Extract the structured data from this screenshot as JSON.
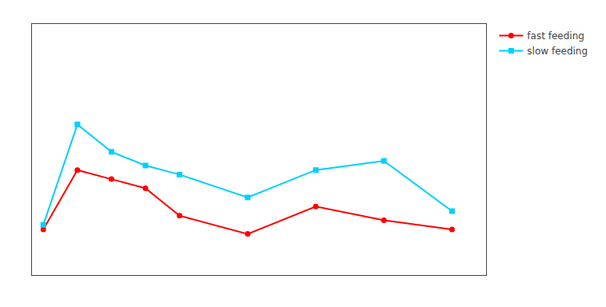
{
  "chart_data": {
    "type": "line",
    "x": [
      0,
      15,
      30,
      45,
      60,
      90,
      120,
      150,
      180
    ],
    "series": [
      {
        "name": "fast feeding",
        "color": "#ff0000",
        "marker": "circle",
        "values": [
          5.5,
          6.8,
          6.6,
          6.4,
          5.8,
          5.4,
          6.0,
          5.7,
          5.5
        ]
      },
      {
        "name": "slow feeding",
        "color": "#00cfff",
        "marker": "square",
        "values": [
          5.6,
          7.8,
          7.2,
          6.9,
          6.7,
          6.2,
          6.8,
          7.0,
          5.9
        ]
      }
    ],
    "xlim": [
      -5,
      195
    ],
    "ylim": [
      4.5,
      10.0
    ],
    "tick_labels": false,
    "grid": false,
    "legend": "upper right"
  }
}
